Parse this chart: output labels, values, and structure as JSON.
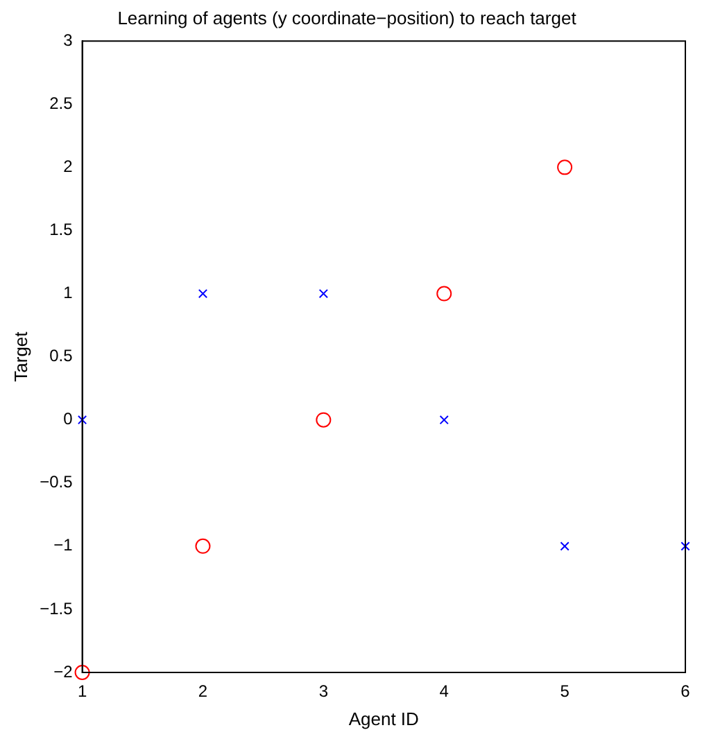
{
  "chart_data": {
    "type": "scatter",
    "title": "Learning of agents (y coordinate−position) to reach target",
    "xlabel": "Agent ID",
    "ylabel": "Target",
    "xlim": [
      1,
      6
    ],
    "xticks": [
      1,
      2,
      3,
      4,
      5,
      6
    ],
    "ylim": [
      -2,
      3
    ],
    "yticks": [
      {
        "value": -2,
        "label": "−2"
      },
      {
        "value": -1.5,
        "label": "−1.5"
      },
      {
        "value": -1,
        "label": "−1"
      },
      {
        "value": -0.5,
        "label": "−0.5"
      },
      0,
      0.5,
      1,
      1.5,
      2,
      2.5,
      3
    ],
    "grid": false,
    "legend": false,
    "series": [
      {
        "color": "#ff0000",
        "marker": "circle",
        "x": [
          1,
          2,
          3,
          4,
          5
        ],
        "values": [
          -2,
          -1,
          0,
          1,
          2
        ]
      },
      {
        "color": "#0000ff",
        "marker": "cross",
        "x": [
          1,
          2,
          3,
          4,
          5,
          6
        ],
        "values": [
          0,
          1,
          1,
          0,
          -1,
          -1
        ]
      }
    ]
  }
}
